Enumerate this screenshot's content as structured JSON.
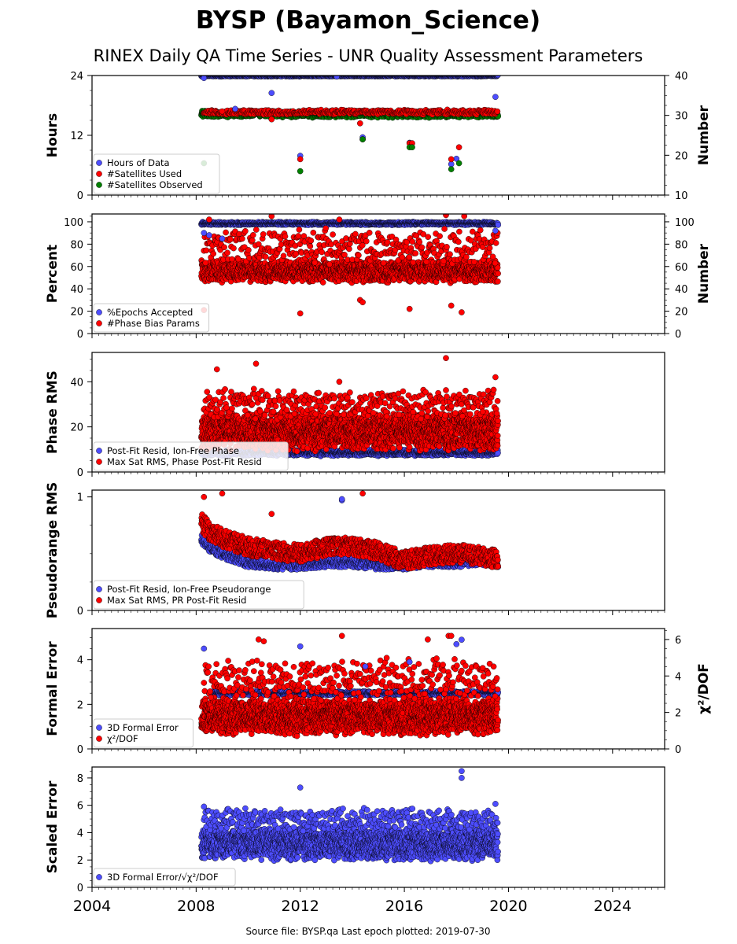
{
  "figure": {
    "title": "BYSP (Bayamon_Science)",
    "subtitle": "RINEX Daily QA Time Series - UNR Quality Assessment Parameters",
    "footer": "Source file: BYSP.qa Last epoch plotted: 2019-07-30"
  },
  "colors": {
    "blue": "#4d4dff",
    "red": "#ff0000",
    "green": "#008000",
    "edge": "#000000"
  },
  "chart_data": [
    {
      "type": "scatter",
      "panel": "hours",
      "ylabel": "Hours",
      "ylabel_right": "Number",
      "xlim": [
        2004,
        2026
      ],
      "ylim": [
        0,
        24
      ],
      "yticks": [
        "0",
        "12",
        "24"
      ],
      "ylim_right": [
        10,
        40
      ],
      "yticks_right": [
        "10",
        "20",
        "30",
        "40"
      ],
      "legend_position": "lower-left",
      "series": [
        {
          "name": "Hours of Data",
          "color": "blue",
          "axis": "left",
          "x": [
            2008.3,
            2009.5,
            2010.9,
            2012.0,
            2013.4,
            2014.4,
            2016.2,
            2017.8,
            2018.0,
            2019.5
          ],
          "y": [
            23.5,
            17.3,
            20.5,
            7.9,
            23.8,
            11.6,
            10.5,
            6.2,
            7.3,
            19.7
          ]
        },
        {
          "name": "#Satellites Used",
          "color": "red",
          "axis": "right",
          "x": [
            2009.0,
            2010.9,
            2012.0,
            2014.3,
            2014.4,
            2016.2,
            2016.3,
            2017.8,
            2018.1
          ],
          "y": [
            31.0,
            29.0,
            19.0,
            28.0,
            24.0,
            23.0,
            23.0,
            19.0,
            22.0
          ]
        },
        {
          "name": "#Satellites Observed",
          "color": "green",
          "axis": "right",
          "x": [
            2008.3,
            2012.0,
            2014.4,
            2016.2,
            2016.3,
            2017.8,
            2018.1
          ],
          "y": [
            18.0,
            16.0,
            24.0,
            22.0,
            22.0,
            16.5,
            18.0
          ]
        }
      ],
      "bands": [
        {
          "series": "Hours of Data",
          "y_mean": 24.0,
          "y_spread": 0.2,
          "step": 0.008,
          "x_start": 2008.2,
          "x_end": 2019.6
        },
        {
          "series": "#Satellites Observed",
          "y_mean": 30.3,
          "y_spread": 0.9,
          "step": 0.01,
          "x_start": 2008.2,
          "x_end": 2019.6
        },
        {
          "series": "#Satellites Used",
          "y_mean": 30.8,
          "y_spread": 0.7,
          "step": 0.025,
          "x_start": 2008.3,
          "x_end": 2019.6
        }
      ]
    },
    {
      "type": "scatter",
      "panel": "percent",
      "ylabel": "Percent",
      "ylabel_right": "Number",
      "xlim": [
        2004,
        2026
      ],
      "ylim": [
        0,
        107
      ],
      "yticks": [
        "0",
        "20",
        "40",
        "60",
        "80",
        "100"
      ],
      "ylim_right": [
        0,
        107
      ],
      "yticks_right": [
        "0",
        "20",
        "40",
        "60",
        "80",
        "100"
      ],
      "legend_position": "lower-left",
      "series": [
        {
          "name": "%Epochs Accepted",
          "color": "blue",
          "axis": "left",
          "x": [
            2008.3,
            2008.5,
            2009.0,
            2019.5
          ],
          "y": [
            90,
            88,
            85,
            92
          ]
        },
        {
          "name": "#Phase Bias Params",
          "color": "red",
          "axis": "right",
          "x": [
            2008.3,
            2008.5,
            2010.9,
            2012.0,
            2013.5,
            2014.3,
            2014.4,
            2016.2,
            2017.6,
            2017.8,
            2018.2,
            2018.3
          ],
          "y": [
            21,
            102,
            105,
            18,
            102,
            30,
            28,
            22,
            106,
            25,
            19,
            105
          ]
        }
      ],
      "bands": [
        {
          "series": "%Epochs Accepted",
          "y_mean": 98.5,
          "y_spread": 1.5,
          "step": 0.01,
          "x_start": 2008.2,
          "x_end": 2019.6
        },
        {
          "series": "#Phase Bias Params",
          "y_mean": 56,
          "y_spread": 11,
          "step": 0.007,
          "x_start": 2008.2,
          "x_end": 2019.6
        },
        {
          "series": "#Phase Bias Params",
          "y_mean": 78,
          "y_spread": 17,
          "step": 0.03,
          "x_start": 2008.3,
          "x_end": 2019.6
        }
      ]
    },
    {
      "type": "scatter",
      "panel": "phase_rms",
      "ylabel": "Phase RMS",
      "xlim": [
        2004,
        2026
      ],
      "ylim": [
        0,
        53
      ],
      "yticks": [
        "0",
        "20",
        "40"
      ],
      "legend_position": "lower-left",
      "series": [
        {
          "name": "Post-Fit Resid, Ion-Free Phase",
          "color": "blue",
          "axis": "left",
          "x": [],
          "y": []
        },
        {
          "name": "Max Sat RMS, Phase Post-Fit Resid",
          "color": "red",
          "axis": "left",
          "x": [
            2008.8,
            2010.3,
            2017.6,
            2019.5,
            2013.5
          ],
          "y": [
            45.5,
            48.0,
            50.5,
            42.0,
            40.0
          ]
        }
      ],
      "bands": [
        {
          "series": "Post-Fit Resid, Ion-Free Phase",
          "y_mean": 8.5,
          "y_spread": 1.5,
          "step": 0.008,
          "x_start": 2008.2,
          "x_end": 2019.6
        },
        {
          "series": "Max Sat RMS, Phase Post-Fit Resid",
          "y_mean": 18,
          "y_spread": 9,
          "step": 0.005,
          "x_start": 2008.2,
          "x_end": 2019.6
        },
        {
          "series": "Max Sat RMS, Phase Post-Fit Resid",
          "y_mean": 30,
          "y_spread": 7,
          "step": 0.03,
          "x_start": 2008.3,
          "x_end": 2019.6
        }
      ]
    },
    {
      "type": "scatter",
      "panel": "pseudorange_rms",
      "ylabel": "Pseudorange RMS",
      "xlim": [
        2004,
        2026
      ],
      "ylim": [
        0,
        1.06
      ],
      "yticks": [
        "0",
        "1"
      ],
      "legend_position": "lower-left",
      "series": [
        {
          "name": "Post-Fit Resid, Ion-Free Pseudorange",
          "color": "blue",
          "axis": "left",
          "x": [
            2013.6,
            2013.6
          ],
          "y": [
            0.97,
            0.98
          ]
        },
        {
          "name": "Max Sat RMS, PR Post-Fit Resid",
          "color": "red",
          "axis": "left",
          "x": [
            2008.3,
            2009.0,
            2010.9,
            2014.4
          ],
          "y": [
            1.0,
            1.03,
            0.85,
            1.03
          ]
        }
      ],
      "trends": [
        {
          "series": "Post-Fit Resid, Ion-Free Pseudorange",
          "spread": 0.04,
          "step": 0.01,
          "x": [
            2008.2,
            2008.5,
            2009.0,
            2010.0,
            2011.0,
            2012.0,
            2013.0,
            2014.0,
            2015.0,
            2016.0,
            2017.0,
            2018.0,
            2019.0,
            2019.6
          ],
          "y": [
            0.63,
            0.56,
            0.5,
            0.42,
            0.4,
            0.4,
            0.42,
            0.42,
            0.4,
            0.4,
            0.42,
            0.42,
            0.44,
            0.42
          ]
        },
        {
          "series": "Max Sat RMS, PR Post-Fit Resid",
          "spread": 0.08,
          "step": 0.01,
          "x": [
            2008.2,
            2008.5,
            2009.0,
            2010.0,
            2011.0,
            2012.0,
            2013.0,
            2014.0,
            2015.0,
            2016.0,
            2017.0,
            2018.0,
            2019.0,
            2019.6
          ],
          "y": [
            0.78,
            0.7,
            0.64,
            0.56,
            0.53,
            0.5,
            0.56,
            0.57,
            0.52,
            0.44,
            0.48,
            0.5,
            0.48,
            0.45
          ]
        }
      ]
    },
    {
      "type": "scatter",
      "panel": "formal_error",
      "ylabel": "Formal Error",
      "ylabel_right": "χ²/DOF",
      "xlim": [
        2004,
        2026
      ],
      "ylim": [
        0,
        5.4
      ],
      "yticks": [
        "0",
        "2",
        "4"
      ],
      "ylim_right": [
        0,
        6.6
      ],
      "yticks_right": [
        "0",
        "2",
        "4",
        "6"
      ],
      "legend_position": "lower-left",
      "series": [
        {
          "name": "3D Formal Error",
          "color": "blue",
          "axis": "left",
          "x": [
            2008.3,
            2012.0,
            2014.5,
            2016.2,
            2018.0,
            2018.2
          ],
          "y": [
            4.5,
            4.6,
            3.7,
            3.9,
            4.7,
            4.9
          ]
        },
        {
          "name": "χ²/DOF",
          "color": "red",
          "axis": "right",
          "x": [
            2010.4,
            2010.6,
            2013.6,
            2016.9,
            2017.7,
            2017.8
          ],
          "y": [
            6.0,
            5.9,
            6.2,
            6.0,
            6.2,
            6.2
          ]
        }
      ],
      "bands": [
        {
          "series": "3D Formal Error",
          "y_mean": 2.5,
          "y_spread": 0.1,
          "step": 0.01,
          "x_start": 2008.5,
          "x_end": 2019.6
        },
        {
          "series": "χ²/DOF",
          "y_mean": 1.8,
          "y_spread": 1.1,
          "step": 0.005,
          "x_start": 2008.2,
          "x_end": 2019.6
        },
        {
          "series": "χ²/DOF",
          "y_mean": 3.8,
          "y_spread": 1.2,
          "step": 0.03,
          "x_start": 2008.3,
          "x_end": 2019.6
        }
      ]
    },
    {
      "type": "scatter",
      "panel": "scaled_error",
      "ylabel": "Scaled Error",
      "xlim": [
        2004,
        2026
      ],
      "ylim": [
        0,
        8.8
      ],
      "yticks": [
        "0",
        "2",
        "4",
        "6",
        "8"
      ],
      "xticks": [
        "2004",
        "2008",
        "2012",
        "2016",
        "2020",
        "2024"
      ],
      "legend_position": "lower-left",
      "series": [
        {
          "name": "3D Formal Error/√χ²/DOF",
          "color": "blue",
          "axis": "left",
          "x": [
            2008.3,
            2012.0,
            2018.2,
            2018.2,
            2019.5
          ],
          "y": [
            5.9,
            7.3,
            8.0,
            8.5,
            6.1
          ]
        }
      ],
      "bands": [
        {
          "series": "3D Formal Error/√χ²/DOF",
          "y_mean": 3.2,
          "y_spread": 1.3,
          "step": 0.005,
          "x_start": 2008.2,
          "x_end": 2019.6
        },
        {
          "series": "3D Formal Error/√χ²/DOF",
          "y_mean": 5.0,
          "y_spread": 0.9,
          "step": 0.03,
          "x_start": 2008.3,
          "x_end": 2019.6
        }
      ]
    }
  ]
}
